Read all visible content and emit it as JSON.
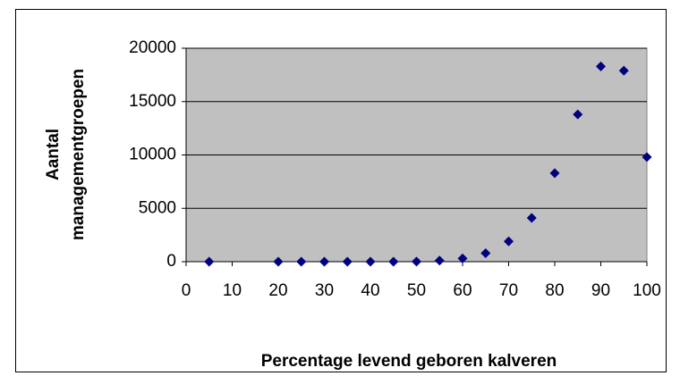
{
  "chart_data": {
    "type": "scatter",
    "xlabel": "Percentage levend geboren kalveren",
    "ylabel": [
      "Aantal",
      "managementgroepen"
    ],
    "x": [
      5,
      20,
      25,
      30,
      35,
      40,
      45,
      50,
      55,
      60,
      65,
      70,
      75,
      80,
      85,
      90,
      95,
      100
    ],
    "series": [
      {
        "color": "#000080",
        "values": [
          0,
          0,
          0,
          0,
          0,
          0,
          0,
          10,
          100,
          300,
          800,
          1900,
          4100,
          8300,
          13800,
          18300,
          17900,
          9800
        ]
      }
    ],
    "xlim": [
      0,
      100
    ],
    "xticks": [
      0,
      10,
      20,
      30,
      40,
      50,
      60,
      70,
      80,
      90,
      100
    ],
    "ylim": [
      0,
      20000
    ],
    "yticks": [
      0,
      5000,
      10000,
      15000,
      20000
    ],
    "grid": true,
    "plot_background": "#c0c0c0"
  }
}
